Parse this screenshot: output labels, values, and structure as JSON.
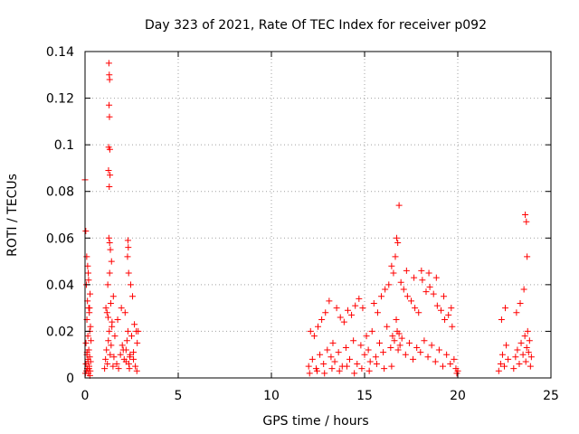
{
  "chart_data": {
    "type": "scatter",
    "title": "Day 323 of 2021, Rate Of TEC Index for receiver p092",
    "xlabel": "GPS time / hours",
    "ylabel": "ROTI / TECUs",
    "xlim": [
      0,
      25
    ],
    "ylim": [
      0,
      0.14
    ],
    "x_ticks": [
      0,
      5,
      10,
      15,
      20,
      25
    ],
    "x_tick_labels": [
      "0",
      "5",
      "10",
      "15",
      "20",
      "25"
    ],
    "y_ticks": [
      0,
      0.02,
      0.04,
      0.06,
      0.08,
      0.1,
      0.12,
      0.14
    ],
    "y_tick_labels": [
      "0",
      "0.02",
      "0.04",
      "0.06",
      "0.08",
      "0.1",
      "0.12",
      "0.14"
    ],
    "grid": true,
    "marker": "+",
    "marker_color": "#ff0000",
    "series": [
      {
        "name": "ROTI",
        "x": [
          0.02,
          0.05,
          0.08,
          0.1,
          0.12,
          0.15,
          0.18,
          0.2,
          0.22,
          0.25,
          0.28,
          0.3,
          0.05,
          0.1,
          0.15,
          0.2,
          0.25,
          0.07,
          0.13,
          0.17,
          0.23,
          0.27,
          0.0,
          0.04,
          0.09,
          0.14,
          0.19,
          0.24,
          0.29,
          0.32,
          0.11,
          0.16,
          0.21,
          0.26,
          1.05,
          1.1,
          1.15,
          1.2,
          1.25,
          1.3,
          1.35,
          1.4,
          1.45,
          1.5,
          1.55,
          1.6,
          1.12,
          1.22,
          1.32,
          1.42,
          1.52,
          1.28,
          1.3,
          1.32,
          1.29,
          1.31,
          1.27,
          1.33,
          1.26,
          1.34,
          1.3,
          1.28,
          1.32,
          1.36,
          1.18,
          1.24,
          1.38,
          1.44,
          1.7,
          1.8,
          1.9,
          2.0,
          2.1,
          2.2,
          2.25,
          2.3,
          2.35,
          2.4,
          2.5,
          2.6,
          2.7,
          2.8,
          2.85,
          1.75,
          1.95,
          2.15,
          2.3,
          2.32,
          2.28,
          2.34,
          2.45,
          2.55,
          2.65,
          2.75,
          2.05,
          2.2,
          2.38,
          2.42,
          2.6,
          2.78,
          12.0,
          12.2,
          12.4,
          12.6,
          12.8,
          13.0,
          13.2,
          13.3,
          13.4,
          13.6,
          13.8,
          14.0,
          14.2,
          14.4,
          14.6,
          14.8,
          15.0,
          15.1,
          15.2,
          15.3,
          15.4,
          15.6,
          15.8,
          16.0,
          16.2,
          16.4,
          16.5,
          16.6,
          16.7,
          16.75,
          16.8,
          16.85,
          16.9,
          17.0,
          17.2,
          17.4,
          17.6,
          17.8,
          18.0,
          18.2,
          18.4,
          18.6,
          18.8,
          19.0,
          19.2,
          19.4,
          19.6,
          19.8,
          19.9,
          20.0,
          12.1,
          12.3,
          12.5,
          12.7,
          12.9,
          13.1,
          13.5,
          13.7,
          13.9,
          14.1,
          14.3,
          14.5,
          14.7,
          14.9,
          15.5,
          15.7,
          15.9,
          16.1,
          16.3,
          16.45,
          16.55,
          16.65,
          16.72,
          16.78,
          16.95,
          17.1,
          17.3,
          17.5,
          17.7,
          17.9,
          18.1,
          18.3,
          18.5,
          18.7,
          18.9,
          19.1,
          19.3,
          19.5,
          19.7,
          12.05,
          12.45,
          12.85,
          13.25,
          13.65,
          14.05,
          14.45,
          14.85,
          15.25,
          15.65,
          16.05,
          16.45,
          16.85,
          17.25,
          17.65,
          18.05,
          18.45,
          18.85,
          19.25,
          19.65,
          19.95,
          22.2,
          22.3,
          22.4,
          22.5,
          22.6,
          22.7,
          23.0,
          23.1,
          23.2,
          23.3,
          23.4,
          23.5,
          23.6,
          23.65,
          23.7,
          23.75,
          23.8,
          23.85,
          23.9,
          23.95,
          22.35,
          22.55,
          23.15,
          23.35,
          23.55,
          23.62,
          23.68,
          23.72
        ],
        "y": [
          0.002,
          0.006,
          0.003,
          0.01,
          0.004,
          0.008,
          0.002,
          0.012,
          0.005,
          0.009,
          0.003,
          0.007,
          0.015,
          0.025,
          0.018,
          0.03,
          0.02,
          0.04,
          0.033,
          0.045,
          0.028,
          0.036,
          0.085,
          0.063,
          0.052,
          0.048,
          0.042,
          0.03,
          0.022,
          0.016,
          0.011,
          0.007,
          0.004,
          0.001,
          0.004,
          0.008,
          0.012,
          0.006,
          0.016,
          0.02,
          0.01,
          0.014,
          0.024,
          0.005,
          0.009,
          0.018,
          0.03,
          0.04,
          0.045,
          0.05,
          0.035,
          0.135,
          0.13,
          0.128,
          0.117,
          0.112,
          0.099,
          0.098,
          0.089,
          0.087,
          0.082,
          0.06,
          0.058,
          0.055,
          0.028,
          0.026,
          0.032,
          0.022,
          0.006,
          0.004,
          0.01,
          0.014,
          0.008,
          0.012,
          0.016,
          0.02,
          0.006,
          0.009,
          0.018,
          0.011,
          0.005,
          0.015,
          0.02,
          0.025,
          0.03,
          0.028,
          0.059,
          0.056,
          0.052,
          0.045,
          0.04,
          0.035,
          0.023,
          0.02,
          0.012,
          0.007,
          0.004,
          0.01,
          0.008,
          0.003,
          0.005,
          0.008,
          0.004,
          0.01,
          0.006,
          0.012,
          0.009,
          0.015,
          0.007,
          0.011,
          0.005,
          0.013,
          0.008,
          0.016,
          0.006,
          0.014,
          0.01,
          0.018,
          0.012,
          0.007,
          0.02,
          0.009,
          0.015,
          0.011,
          0.022,
          0.013,
          0.018,
          0.016,
          0.025,
          0.02,
          0.012,
          0.019,
          0.014,
          0.017,
          0.01,
          0.015,
          0.008,
          0.013,
          0.011,
          0.016,
          0.009,
          0.014,
          0.007,
          0.012,
          0.005,
          0.01,
          0.006,
          0.008,
          0.004,
          0.003,
          0.02,
          0.018,
          0.022,
          0.025,
          0.028,
          0.033,
          0.03,
          0.026,
          0.024,
          0.029,
          0.027,
          0.031,
          0.034,
          0.03,
          0.032,
          0.028,
          0.035,
          0.038,
          0.04,
          0.048,
          0.045,
          0.052,
          0.06,
          0.058,
          0.041,
          0.038,
          0.035,
          0.033,
          0.03,
          0.028,
          0.042,
          0.037,
          0.039,
          0.036,
          0.031,
          0.029,
          0.025,
          0.027,
          0.022,
          0.002,
          0.003,
          0.002,
          0.004,
          0.003,
          0.005,
          0.002,
          0.004,
          0.003,
          0.006,
          0.004,
          0.005,
          0.074,
          0.046,
          0.043,
          0.046,
          0.045,
          0.043,
          0.035,
          0.03,
          0.002,
          0.003,
          0.006,
          0.01,
          0.005,
          0.014,
          0.008,
          0.004,
          0.009,
          0.012,
          0.006,
          0.015,
          0.01,
          0.018,
          0.007,
          0.013,
          0.02,
          0.011,
          0.016,
          0.005,
          0.009,
          0.025,
          0.03,
          0.028,
          0.032,
          0.038,
          0.07,
          0.067,
          0.052
        ]
      }
    ]
  }
}
